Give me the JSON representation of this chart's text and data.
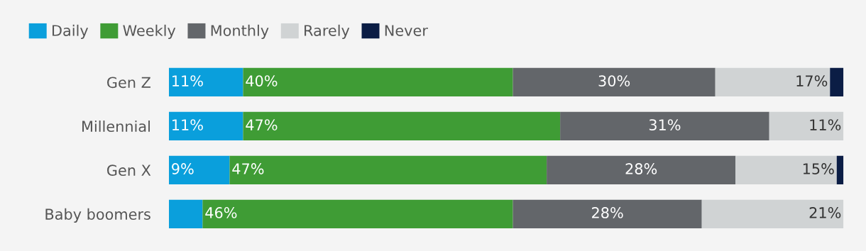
{
  "chart_data": {
    "type": "bar",
    "orientation": "horizontal",
    "stacked": true,
    "categories": [
      "Gen Z",
      "Millennial",
      "Gen X",
      "Baby boomers"
    ],
    "xlim": [
      0,
      100
    ],
    "tick_labels": "y",
    "legend": "top left",
    "grid": false,
    "series": [
      {
        "name": "Daily",
        "color": "#0a9fdc",
        "values": [
          11,
          11,
          9,
          5
        ],
        "value_labels": [
          "11%",
          "11%",
          "9%",
          null
        ]
      },
      {
        "name": "Weekly",
        "color": "#3f9c35",
        "values": [
          40,
          47,
          47,
          46
        ],
        "value_labels": [
          "40%",
          "47%",
          "47%",
          "46%"
        ]
      },
      {
        "name": "Monthly",
        "color": "#63666a",
        "values": [
          30,
          31,
          28,
          28
        ],
        "value_labels": [
          "30%",
          "31%",
          "28%",
          "28%"
        ]
      },
      {
        "name": "Rarely",
        "color": "#d0d3d4",
        "values": [
          17,
          11,
          15,
          21
        ],
        "value_labels": [
          "17%",
          "11%",
          "15%",
          "21%"
        ]
      },
      {
        "name": "Never",
        "color": "#0b1d45",
        "values": [
          2,
          0,
          1,
          0
        ],
        "value_labels": [
          null,
          null,
          null,
          null
        ]
      }
    ]
  }
}
